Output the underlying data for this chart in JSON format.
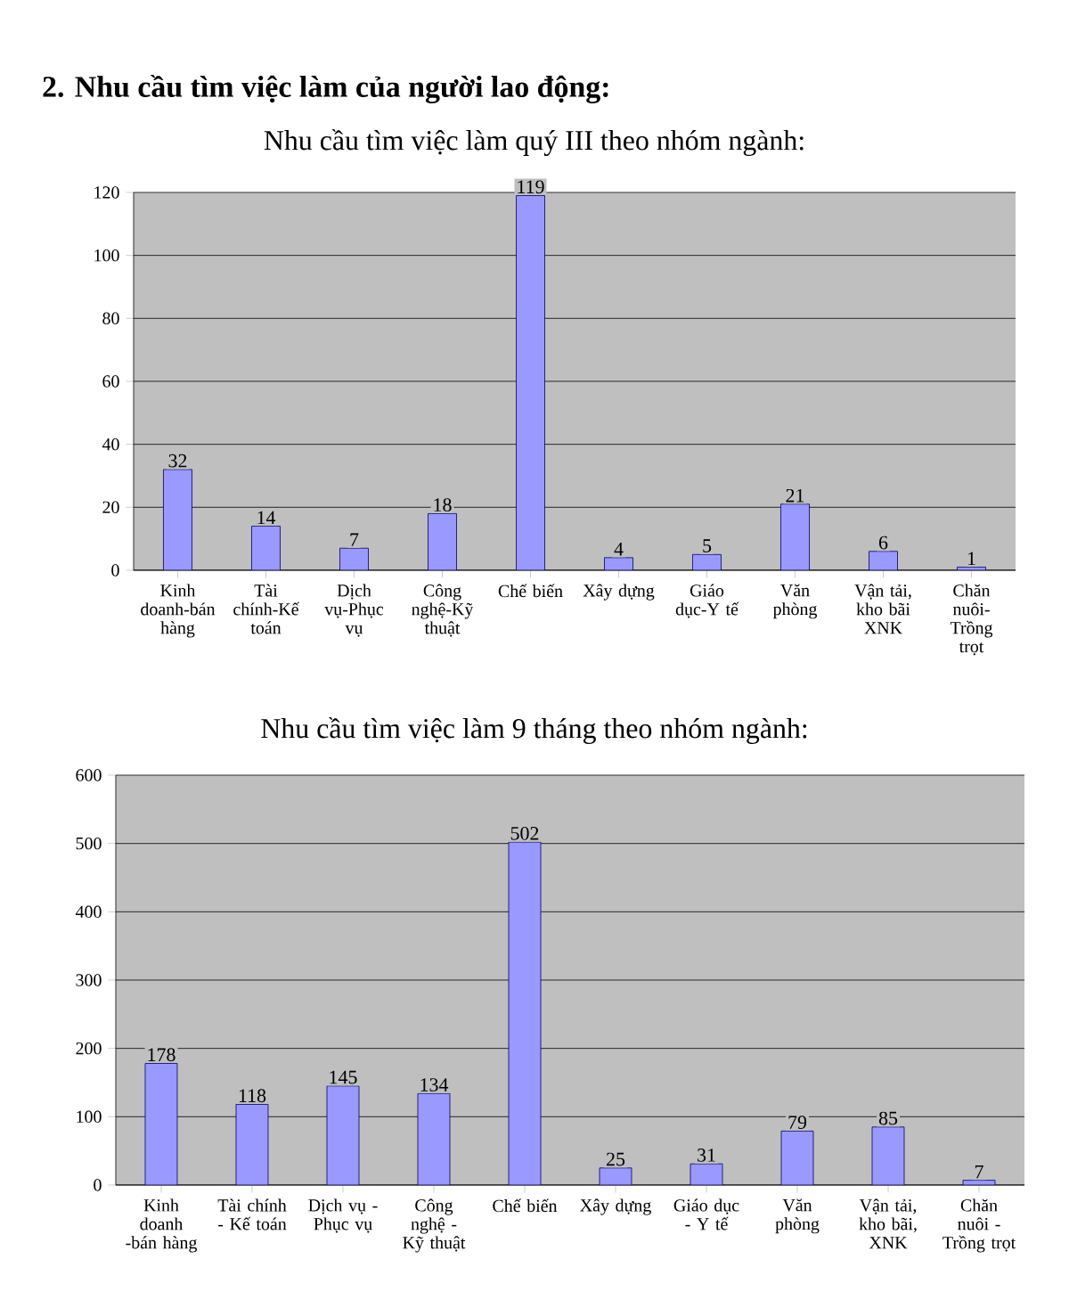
{
  "chart_data": [
    {
      "type": "bar",
      "title": "2. Nhu cầu tìm việc làm của người lao động:",
      "subtitle": "Nhu cầu tìm việc làm quý III theo nhóm ngành:",
      "categories": [
        "Kinh doanh-bán hàng",
        "Tài chính-Kế toán",
        "Dịch vụ-Phục vụ",
        "Công nghệ-Kỹ thuật",
        "Chế biến",
        "Xây dựng",
        "Giáo dục-Y tế",
        "Văn phòng",
        "Vận tải, kho bãi XNK",
        "Chăn nuôi-Trồng trọt"
      ],
      "values": [
        32,
        14,
        7,
        18,
        119,
        4,
        5,
        21,
        6,
        1
      ],
      "color": "#9999ff",
      "ylim": [
        0,
        120
      ],
      "yticks": [
        0,
        20,
        40,
        60,
        80,
        100,
        120
      ],
      "grid": "y",
      "data_labels": true
    },
    {
      "type": "bar",
      "title": "Nhu cầu tìm việc làm 9 tháng theo nhóm ngành:",
      "categories": [
        "Kinh doanh -bán hàng",
        "Tài chính - Kế toán",
        "Dịch vụ - Phục vụ",
        "Công nghệ - Kỹ thuật",
        "Chế biến",
        "Xây dựng",
        "Giáo dục - Y tế",
        "Văn phòng",
        "Vận tải, kho bãi, XNK",
        "Chăn nuôi - Trồng trọt"
      ],
      "values": [
        178,
        118,
        145,
        134,
        502,
        25,
        31,
        79,
        85,
        7
      ],
      "color": "#9999ff",
      "ylim": [
        0,
        600
      ],
      "yticks": [
        0,
        100,
        200,
        300,
        400,
        500,
        600
      ],
      "grid": "y",
      "data_labels": true
    }
  ]
}
